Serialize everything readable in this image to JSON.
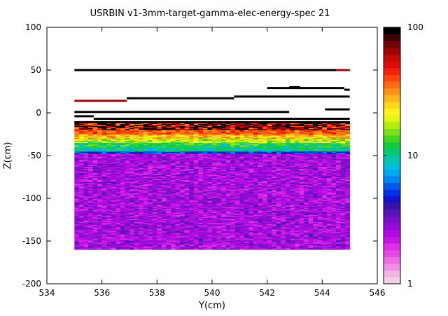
{
  "chart_data": {
    "type": "heatmap",
    "title": "USRBIN v1-3mm-target-gamma-elec-energy-spec 21",
    "xlabel": "Y(cm)",
    "ylabel": "Z(cm)",
    "xlim": [
      534,
      546
    ],
    "ylim": [
      -200,
      100
    ],
    "xticks": [
      "534",
      "536",
      "538",
      "540",
      "542",
      "544",
      "546"
    ],
    "yticks": [
      "100",
      "50",
      "0",
      "-50",
      "-100",
      "-150",
      "-200"
    ],
    "colorbar": {
      "scale": "log",
      "range": [
        1,
        100
      ],
      "tick_labels": [
        "100",
        "10",
        "1"
      ]
    },
    "grid": false,
    "data_extent": {
      "x": [
        535,
        545
      ],
      "z": [
        -160,
        50
      ]
    },
    "regions": [
      {
        "z_range": [
          -160,
          -48
        ],
        "level": 2.5
      },
      {
        "z_range": [
          -48,
          -45
        ],
        "level": 5
      },
      {
        "z_range": [
          -45,
          -40
        ],
        "level": 10
      },
      {
        "z_range": [
          -40,
          -35
        ],
        "level": 12
      },
      {
        "z_range": [
          -35,
          -30
        ],
        "level": 18
      },
      {
        "z_range": [
          -30,
          -25
        ],
        "level": 28
      },
      {
        "z_range": [
          -25,
          -20
        ],
        "level": 40
      },
      {
        "z_range": [
          -20,
          -10
        ],
        "level": 70
      }
    ],
    "streaks": [
      {
        "x": [
          535.0,
          545.0
        ],
        "z": 50,
        "level": 100
      },
      {
        "x": [
          539.5,
          539.7
        ],
        "z": 50,
        "level": 100
      },
      {
        "x": [
          543.6,
          544.5
        ],
        "z": 50,
        "level": 100
      },
      {
        "x": [
          544.5,
          545.0
        ],
        "z": 50,
        "level": 70
      },
      {
        "x": [
          542.0,
          544.8
        ],
        "z": 29,
        "level": 100
      },
      {
        "x": [
          542.8,
          543.2
        ],
        "z": 30,
        "level": 100
      },
      {
        "x": [
          544.8,
          545.0
        ],
        "z": 27,
        "level": 100
      },
      {
        "x": [
          540.8,
          545.0
        ],
        "z": 19,
        "level": 100
      },
      {
        "x": [
          536.9,
          540.8
        ],
        "z": 17,
        "level": 100
      },
      {
        "x": [
          535.0,
          536.9
        ],
        "z": 14,
        "level": 70
      },
      {
        "x": [
          535.0,
          542.8
        ],
        "z": 1,
        "level": 100
      },
      {
        "x": [
          544.1,
          545.0
        ],
        "z": 4,
        "level": 100
      },
      {
        "x": [
          535.0,
          535.7
        ],
        "z": -4,
        "level": 100
      },
      {
        "x": [
          535.7,
          545.0
        ],
        "z": -7,
        "level": 100
      },
      {
        "x": [
          535.0,
          545.0
        ],
        "z": -11,
        "level": 100
      }
    ]
  }
}
